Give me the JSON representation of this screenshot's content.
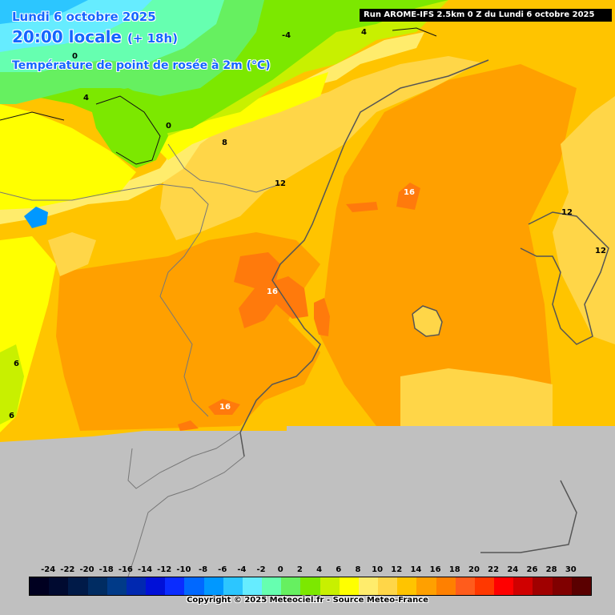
{
  "header": {
    "date_line": "Lundi 6 octobre 2025",
    "time_local": "20:00 locale",
    "time_offset": "(+ 18h)",
    "variable": "Température de point de rosée à 2m (°C)"
  },
  "run_info": "Run AROME-IFS 2.5km 0 Z du Lundi 6 octobre 2025",
  "contour_labels": [
    "0",
    "0",
    "4",
    "4",
    "8",
    "12",
    "12",
    "12",
    "16",
    "16",
    "16",
    "-4",
    "6",
    "6"
  ],
  "legend": {
    "ticks": [
      "-24",
      "-22",
      "-20",
      "-18",
      "-16",
      "-14",
      "-12",
      "-10",
      "-8",
      "-6",
      "-4",
      "-2",
      "0",
      "2",
      "4",
      "6",
      "8",
      "10",
      "12",
      "14",
      "16",
      "18",
      "20",
      "22",
      "24",
      "26",
      "28",
      "30"
    ],
    "colors": [
      "#000020",
      "#000a30",
      "#001a48",
      "#002c62",
      "#003a88",
      "#0028b0",
      "#0010d8",
      "#0a2cff",
      "#0068ff",
      "#0098ff",
      "#2cc6ff",
      "#66ecff",
      "#66ffb0",
      "#66f060",
      "#7ce800",
      "#c8f000",
      "#ffff00",
      "#ffec6c",
      "#ffd648",
      "#ffc400",
      "#ffa000",
      "#ff8000",
      "#ff5c1c",
      "#ff3800",
      "#ff0000",
      "#d00000",
      "#a00000",
      "#800000",
      "#5a0000"
    ]
  },
  "copyright": "Copyright © 2025 Meteociel.fr - Source Meteo-France"
}
